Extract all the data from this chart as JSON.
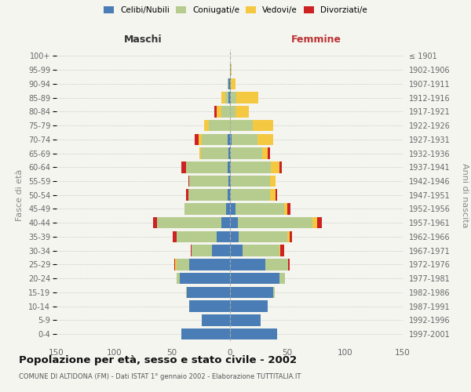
{
  "age_groups": [
    "0-4",
    "5-9",
    "10-14",
    "15-19",
    "20-24",
    "25-29",
    "30-34",
    "35-39",
    "40-44",
    "45-49",
    "50-54",
    "55-59",
    "60-64",
    "65-69",
    "70-74",
    "75-79",
    "80-84",
    "85-89",
    "90-94",
    "95-99",
    "100+"
  ],
  "birth_years": [
    "1997-2001",
    "1992-1996",
    "1987-1991",
    "1982-1986",
    "1977-1981",
    "1972-1976",
    "1967-1971",
    "1962-1966",
    "1957-1961",
    "1952-1956",
    "1947-1951",
    "1942-1946",
    "1937-1941",
    "1932-1936",
    "1927-1931",
    "1922-1926",
    "1917-1921",
    "1912-1916",
    "1907-1911",
    "1902-1906",
    "≤ 1901"
  ],
  "maschi_celibi": [
    42,
    24,
    35,
    37,
    43,
    35,
    15,
    11,
    7,
    3,
    2,
    1,
    2,
    1,
    2,
    0,
    0,
    1,
    1,
    0,
    0
  ],
  "maschi_coniugati": [
    0,
    0,
    0,
    1,
    3,
    11,
    18,
    35,
    56,
    36,
    34,
    34,
    36,
    24,
    22,
    18,
    7,
    3,
    1,
    0,
    0
  ],
  "maschi_vedovi": [
    0,
    0,
    0,
    0,
    0,
    1,
    0,
    0,
    0,
    0,
    0,
    0,
    0,
    1,
    3,
    4,
    4,
    3,
    0,
    0,
    0
  ],
  "maschi_divorziati": [
    0,
    0,
    0,
    0,
    0,
    1,
    1,
    3,
    3,
    0,
    2,
    1,
    4,
    0,
    3,
    0,
    2,
    0,
    0,
    0,
    0
  ],
  "femmine_celibi": [
    41,
    27,
    33,
    38,
    43,
    31,
    11,
    8,
    7,
    5,
    1,
    1,
    1,
    1,
    2,
    0,
    0,
    1,
    1,
    1,
    0
  ],
  "femmine_coniugati": [
    0,
    0,
    0,
    1,
    5,
    20,
    32,
    42,
    65,
    42,
    34,
    34,
    35,
    27,
    22,
    20,
    5,
    5,
    0,
    0,
    0
  ],
  "femmine_vedovi": [
    0,
    0,
    0,
    0,
    0,
    0,
    1,
    2,
    4,
    3,
    5,
    5,
    7,
    5,
    14,
    18,
    12,
    19,
    4,
    1,
    0
  ],
  "femmine_divorziati": [
    0,
    0,
    0,
    0,
    0,
    1,
    3,
    2,
    4,
    3,
    1,
    0,
    2,
    2,
    0,
    0,
    0,
    0,
    0,
    0,
    0
  ],
  "color_celibi": "#4a7db5",
  "color_coniugati": "#b5cc8e",
  "color_vedovi": "#f5c842",
  "color_divorziati": "#cc2222",
  "title": "Popolazione per età, sesso e stato civile - 2002",
  "subtitle": "COMUNE DI ALTIDONA (FM) - Dati ISTAT 1° gennaio 2002 - Elaborazione TUTTITALIA.IT",
  "xlabel_left": "Maschi",
  "xlabel_right": "Femmine",
  "ylabel_left": "Fasce di età",
  "ylabel_right": "Anni di nascita",
  "xlim": 150,
  "background_color": "#f5f5f0",
  "grid_color": "#cccccc"
}
